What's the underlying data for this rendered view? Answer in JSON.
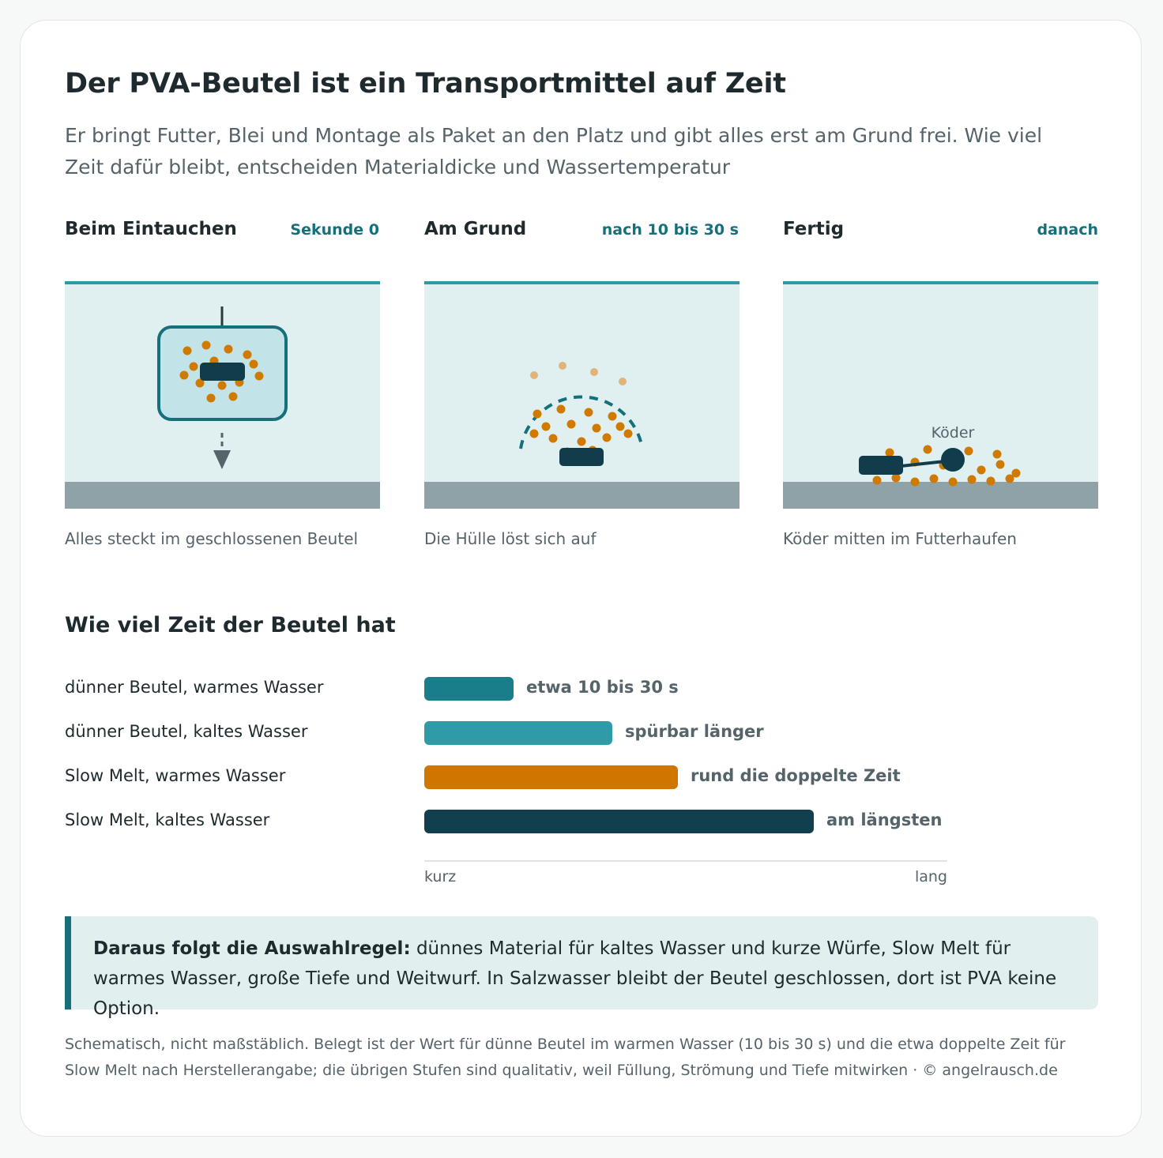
{
  "header": {
    "title": "Der PVA-Beutel ist ein Transportmittel auf Zeit",
    "subtitle": "Er bringt Futter, Blei und Montage als Paket an den Platz und gibt alles erst am Grund frei. Wie viel Zeit dafür bleibt, entscheiden Materialdicke und Wassertemperatur"
  },
  "steps": [
    {
      "title": "Beim Eintauchen",
      "time": "Sekunde 0",
      "caption": "Alles steckt im geschlossenen Beutel"
    },
    {
      "title": "Am Grund",
      "time": "nach 10 bis 30 s",
      "caption": "Die Hülle löst sich auf"
    },
    {
      "title": "Fertig",
      "time": "danach",
      "caption": "Köder mitten im Futterhaufen",
      "bait_label": "Köder"
    }
  ],
  "colors": {
    "water": "#e0f0f0",
    "water_line": "#2f9aa6",
    "ground": "#8ea2a8",
    "bag": "#15707c",
    "bag_fill": "#c2e3e8",
    "pellet": "#d07a00",
    "pellet_light": "#e0b47a",
    "lead": "#113c4c"
  },
  "timing": {
    "title": "Wie viel Zeit der Beutel hat",
    "axis_min_label": "kurz",
    "axis_max_label": "lang",
    "rows": [
      {
        "label": "dünner Beutel, warmes Wasser",
        "value_label": "etwa 10 bis 30 s",
        "relative_duration": 0.17,
        "color": "#1a7e8a"
      },
      {
        "label": "dünner Beutel, kaltes Wasser",
        "value_label": "spürbar länger",
        "relative_duration": 0.36,
        "color": "#2f9ba8"
      },
      {
        "label": "Slow Melt, warmes Wasser",
        "value_label": "rund die doppelte Zeit",
        "relative_duration": 0.485,
        "color": "#cf7500"
      },
      {
        "label": "Slow Melt, kaltes Wasser",
        "value_label": "am längsten",
        "relative_duration": 0.745,
        "color": "#113f4e"
      }
    ]
  },
  "rule": {
    "strong": "Daraus folgt die Auswahlregel:",
    "text": " dünnes Material für kaltes Wasser und kurze Würfe, Slow Melt für warmes Wasser, große Tiefe und Weitwurf. In Salzwasser bleibt der Beutel geschlossen, dort ist PVA keine Option."
  },
  "footer": "Schematisch, nicht maßstäblich. Belegt ist der Wert für dünne Beutel im warmen Wasser (10 bis 30 s) und die etwa doppelte Zeit für Slow Melt nach Herstellerangabe; die übrigen Stufen sind qualitativ, weil Füllung, Strömung und Tiefe mitwirken · © angelrausch.de"
}
